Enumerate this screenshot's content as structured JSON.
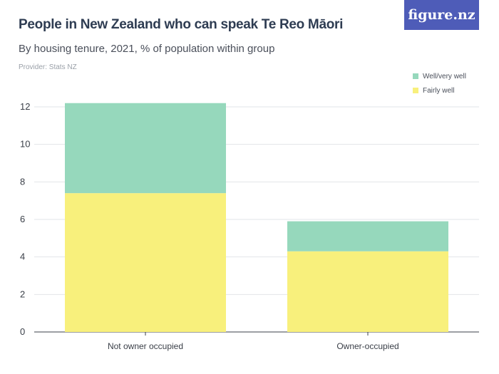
{
  "header": {
    "title": "People in New Zealand who can speak Te Reo Māori",
    "subtitle": "By housing tenure, 2021, % of population within group",
    "provider": "Provider: Stats NZ",
    "logo": "figure.nz"
  },
  "colors": {
    "well_very_well": "#96d8bc",
    "fairly_well": "#f8f07c",
    "logo_bg": "#4e5cb8"
  },
  "chart_data": {
    "type": "bar",
    "stacked": true,
    "title": "People in New Zealand who can speak Te Reo Māori",
    "subtitle": "By housing tenure, 2021, % of population within group",
    "categories": [
      "Not owner occupied",
      "Owner-occupied"
    ],
    "series": [
      {
        "name": "Fairly well",
        "values": [
          7.4,
          4.3
        ]
      },
      {
        "name": "Well/very well",
        "values": [
          4.8,
          1.6
        ]
      }
    ],
    "ylim": [
      0,
      12
    ],
    "yticks": [
      "0",
      "2",
      "4",
      "6",
      "8",
      "10",
      "12"
    ],
    "grid": true,
    "legend": "top-right"
  }
}
